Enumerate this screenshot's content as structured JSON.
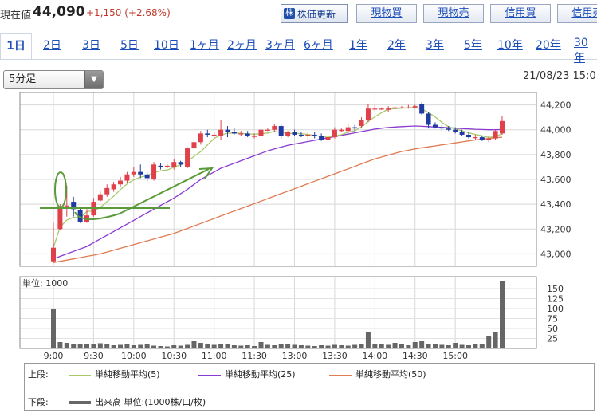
{
  "header": {
    "price_label": "現在値",
    "price_value": "44,090",
    "price_change": "+1,150 (+2.68%)",
    "refresh_label": "株価更新",
    "buttons": [
      "現物買",
      "現物売",
      "信用買",
      "信用売"
    ]
  },
  "tabs": [
    "1日",
    "2日",
    "3日",
    "5日",
    "10日",
    "1ヶ月",
    "2ヶ月",
    "3ヶ月",
    "6ヶ月",
    "1年",
    "2年",
    "3年",
    "5年",
    "10年",
    "20年",
    "30年"
  ],
  "interval_select": {
    "value": "5分足"
  },
  "datetime": "21/08/23 15:0",
  "colors": {
    "up": "#e0404a",
    "down": "#1f3aa0",
    "ma5": "#a8c86a",
    "ma25": "#8a3ad0",
    "ma50": "#e07a50",
    "volume": "#666666",
    "annotation": "#5a9a3a"
  },
  "chart_data": {
    "type": "candlestick",
    "price_axis": {
      "ticks": [
        "44,200",
        "44,000",
        "43,800",
        "43,600",
        "43,400",
        "43,200",
        "43,000"
      ],
      "range": [
        42900,
        44300
      ]
    },
    "volume_axis": {
      "label": "単位: 1000",
      "ticks": [
        "150",
        "125",
        "100",
        "75",
        "50",
        "25"
      ],
      "range": [
        0,
        170
      ]
    },
    "x_ticks": [
      "9:00",
      "9:30",
      "10:00",
      "10:30",
      "11:00",
      "11:30",
      "13:00",
      "13:30",
      "14:00",
      "14:30",
      "15:00"
    ],
    "candles": [
      [
        42940,
        43250,
        42930,
        43050
      ],
      [
        43200,
        43400,
        43190,
        43380
      ],
      [
        43390,
        43550,
        43300,
        43390
      ],
      [
        43420,
        43460,
        43300,
        43360
      ],
      [
        43350,
        43380,
        43250,
        43260
      ],
      [
        43260,
        43360,
        43250,
        43310
      ],
      [
        43310,
        43450,
        43300,
        43420
      ],
      [
        43430,
        43510,
        43420,
        43480
      ],
      [
        43480,
        43560,
        43460,
        43530
      ],
      [
        43520,
        43580,
        43500,
        43560
      ],
      [
        43560,
        43620,
        43540,
        43590
      ],
      [
        43590,
        43660,
        43570,
        43640
      ],
      [
        43640,
        43700,
        43620,
        43660
      ],
      [
        43660,
        43720,
        43610,
        43640
      ],
      [
        43640,
        43660,
        43580,
        43610
      ],
      [
        43600,
        43740,
        43590,
        43720
      ],
      [
        43710,
        43730,
        43680,
        43700
      ],
      [
        43700,
        43720,
        43690,
        43710
      ],
      [
        43700,
        43760,
        43680,
        43740
      ],
      [
        43740,
        43750,
        43700,
        43720
      ],
      [
        43700,
        43860,
        43690,
        43850
      ],
      [
        43850,
        43930,
        43820,
        43900
      ],
      [
        43900,
        43990,
        43880,
        43970
      ],
      [
        43970,
        44000,
        43940,
        43960
      ],
      [
        43960,
        43980,
        43930,
        43960
      ],
      [
        43950,
        44080,
        43920,
        44000
      ],
      [
        44000,
        44030,
        43940,
        43980
      ],
      [
        43980,
        44010,
        43960,
        43970
      ],
      [
        43970,
        43990,
        43950,
        43970
      ],
      [
        43970,
        43990,
        43940,
        43950
      ],
      [
        43950,
        43970,
        43930,
        43950
      ],
      [
        43950,
        44010,
        43930,
        44000
      ],
      [
        44000,
        44010,
        43990,
        44000
      ],
      [
        44000,
        44050,
        43980,
        44030
      ],
      [
        44030,
        44050,
        43930,
        43950
      ],
      [
        43950,
        43990,
        43940,
        43980
      ],
      [
        43980,
        44000,
        43950,
        43960
      ],
      [
        43960,
        43980,
        43940,
        43950
      ],
      [
        43950,
        43980,
        43920,
        43960
      ],
      [
        43960,
        43980,
        43930,
        43950
      ],
      [
        43950,
        43970,
        43910,
        43920
      ],
      [
        43920,
        43960,
        43900,
        43940
      ],
      [
        43940,
        44020,
        43930,
        44000
      ],
      [
        43990,
        44010,
        43980,
        44000
      ],
      [
        43990,
        44050,
        43970,
        44020
      ],
      [
        44020,
        44040,
        43990,
        44010
      ],
      [
        44030,
        44100,
        44010,
        44080
      ],
      [
        44080,
        44210,
        44060,
        44170
      ],
      [
        44170,
        44200,
        44150,
        44170
      ],
      [
        44170,
        44180,
        44160,
        44170
      ],
      [
        44160,
        44190,
        44140,
        44170
      ],
      [
        44170,
        44190,
        44160,
        44180
      ],
      [
        44180,
        44190,
        44170,
        44180
      ],
      [
        44180,
        44200,
        44170,
        44180
      ],
      [
        44180,
        44200,
        44170,
        44190
      ],
      [
        44210,
        44220,
        44120,
        44130
      ],
      [
        44130,
        44140,
        44010,
        44040
      ],
      [
        44040,
        44060,
        44010,
        44020
      ],
      [
        44020,
        44040,
        43990,
        44010
      ],
      [
        44010,
        44030,
        43990,
        44000
      ],
      [
        44000,
        44020,
        43970,
        43980
      ],
      [
        43980,
        44000,
        43950,
        43960
      ],
      [
        43960,
        43980,
        43930,
        43940
      ],
      [
        43940,
        43960,
        43920,
        43940
      ],
      [
        43940,
        43950,
        43910,
        43920
      ],
      [
        43920,
        43950,
        43900,
        43930
      ],
      [
        43930,
        44000,
        43920,
        43990
      ],
      [
        43970,
        44110,
        43960,
        44070
      ]
    ],
    "ma5": [
      43050,
      43215,
      43273,
      43295,
      43288,
      43342,
      43346,
      43374,
      43420,
      43464,
      43518,
      43564,
      43596,
      43618,
      43630,
      43654,
      43670,
      43676,
      43698,
      43718,
      43744,
      43786,
      43824,
      43878,
      43930,
      43958,
      43972,
      43974,
      43972,
      43966,
      43964,
      43968,
      43974,
      43986,
      43978,
      43970,
      43972,
      43968,
      43962,
      43954,
      43946,
      43940,
      43950,
      43960,
      43980,
      43992,
      44024,
      44066,
      44104,
      44136,
      44166,
      44170,
      44174,
      44176,
      44180,
      44166,
      44138,
      44102,
      44060,
      44024,
      44006,
      43992,
      43976,
      43962,
      43952,
      43938,
      43946,
      43968
    ],
    "ma25": [
      42960,
      42980,
      43000,
      43020,
      43040,
      43060,
      43090,
      43120,
      43150,
      43180,
      43210,
      43240,
      43270,
      43300,
      43330,
      43360,
      43390,
      43420,
      43450,
      43485,
      43520,
      43560,
      43600,
      43630,
      43660,
      43690,
      43710,
      43730,
      43750,
      43770,
      43790,
      43810,
      43830,
      43845,
      43860,
      43875,
      43885,
      43895,
      43905,
      43915,
      43925,
      43935,
      43945,
      43955,
      43965,
      43975,
      43985,
      43995,
      44005,
      44012,
      44018,
      44022,
      44025,
      44028,
      44030,
      44028,
      44025,
      44022,
      44019,
      44016,
      44013,
      44010,
      44007,
      44004,
      44002,
      44000,
      44000,
      44002
    ],
    "ma50": [
      42930,
      42940,
      42950,
      42960,
      42970,
      42980,
      42990,
      43000,
      43015,
      43030,
      43045,
      43060,
      43075,
      43090,
      43105,
      43120,
      43135,
      43150,
      43165,
      43185,
      43205,
      43225,
      43245,
      43265,
      43285,
      43305,
      43325,
      43345,
      43365,
      43385,
      43405,
      43425,
      43445,
      43465,
      43485,
      43505,
      43525,
      43545,
      43565,
      43585,
      43605,
      43625,
      43645,
      43665,
      43685,
      43705,
      43725,
      43745,
      43765,
      43780,
      43795,
      43810,
      43825,
      43835,
      43845,
      43855,
      43862,
      43870,
      43878,
      43886,
      43894,
      43902,
      43910,
      43918,
      43924,
      43930,
      43936,
      43940
    ],
    "volume": [
      98,
      16,
      14,
      12,
      11,
      12,
      11,
      13,
      10,
      8,
      9,
      10,
      8,
      9,
      10,
      7,
      6,
      5,
      8,
      7,
      9,
      18,
      14,
      10,
      9,
      12,
      11,
      8,
      7,
      8,
      6,
      16,
      9,
      8,
      10,
      12,
      9,
      8,
      7,
      6,
      8,
      7,
      9,
      8,
      7,
      9,
      10,
      40,
      12,
      10,
      9,
      14,
      11,
      8,
      16,
      18,
      12,
      10,
      9,
      8,
      14,
      9,
      8,
      10,
      11,
      30,
      42,
      168
    ]
  },
  "legend": {
    "upper_label": "上段:",
    "lower_label": "下段:",
    "items": [
      {
        "label": "単純移動平均(5)",
        "color": "#a8c86a"
      },
      {
        "label": "単純移動平均(25)",
        "color": "#8a3ad0"
      },
      {
        "label": "単純移動平均(50)",
        "color": "#e07a50"
      }
    ],
    "volume_label": "出来高 単位:(1000株/口/枚)"
  }
}
